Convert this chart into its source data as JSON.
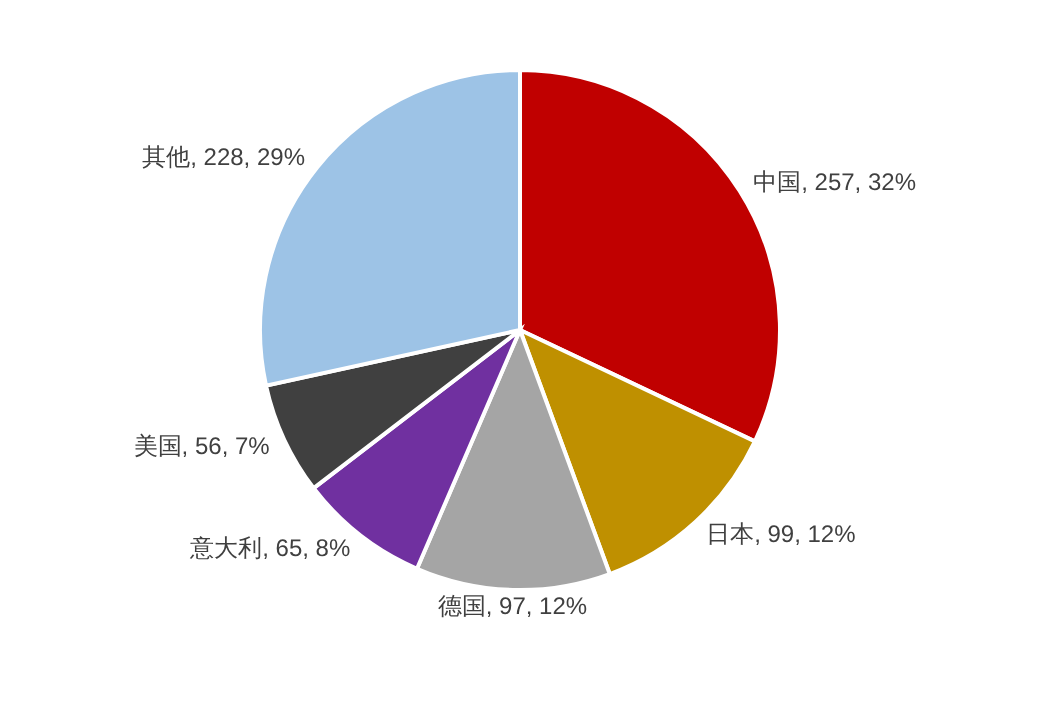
{
  "chart_data": {
    "type": "pie",
    "categories": [
      "中国",
      "日本",
      "德国",
      "意大利",
      "美国",
      "其他"
    ],
    "values": [
      257,
      99,
      97,
      65,
      56,
      228
    ],
    "colors": [
      "#c00000",
      "#bf9000",
      "#a5a5a5",
      "#7030a0",
      "#404040",
      "#9dc3e6"
    ],
    "value_labels": [
      ", 257, 32%",
      ", 99, 12%",
      ", 97, 12%",
      ", 65, 8%",
      ", 56, 7%",
      ", 228, 29%"
    ],
    "legend": false
  }
}
